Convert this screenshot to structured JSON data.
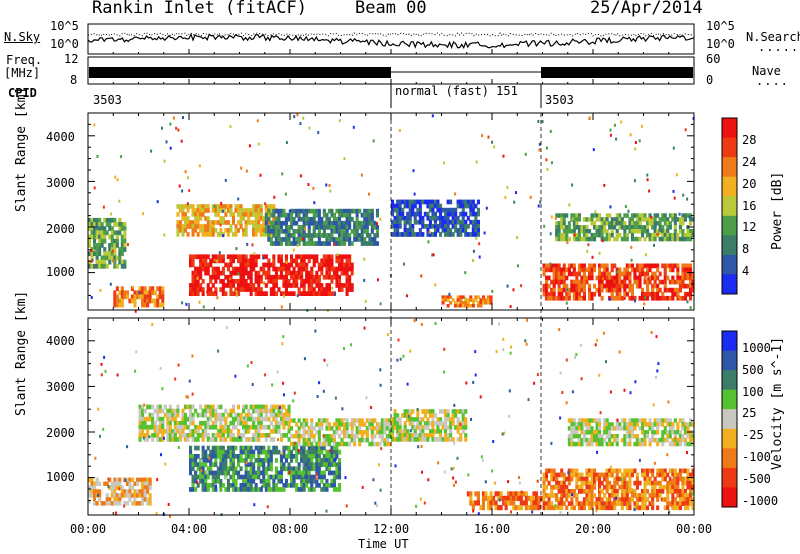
{
  "header": {
    "title": "Rankin Inlet (fitACF)",
    "beam": "Beam 00",
    "date": "25/Apr/2014"
  },
  "strip_labels": {
    "nsky": "N.Sky",
    "nsky_tick_top": "10^5",
    "nsky_tick_bottom": "10^0",
    "nsearch": "N.Search",
    "nsearch_tick_top": "10^5",
    "nsearch_tick_bottom": "10^0",
    "freq_line1": "Freq.",
    "freq_line2": "[MHz]",
    "freq_tick_top": "12",
    "freq_tick_bottom": "8",
    "nave": "Nave",
    "nave_tick_top": "60",
    "nave_tick_bottom": "0",
    "cpid": "CPID",
    "cpid_segments": [
      "3503",
      "normal (fast) 151",
      "3503"
    ]
  },
  "xaxis": {
    "label": "Time UT",
    "ticks": [
      "00:00",
      "04:00",
      "08:00",
      "12:00",
      "16:00",
      "20:00",
      "00:00"
    ]
  },
  "chart_data": [
    {
      "type": "heatmap",
      "title": "",
      "xlabel": "",
      "ylabel": "Slant Range [km]",
      "yticks": [
        1000,
        2000,
        3000,
        4000
      ],
      "ylim": [
        180,
        4500
      ],
      "xlim_hours": [
        0,
        24
      ],
      "colorbar_label": "Power [dB]",
      "colorbar_ticks": [
        "4",
        "8",
        "12",
        "16",
        "20",
        "24",
        "28"
      ],
      "colors": [
        "#1b2cf0",
        "#2f57a8",
        "#3c7d6a",
        "#4d9e4a",
        "#b9c93a",
        "#f0b020",
        "#ef7a18",
        "#ee3a14",
        "#ee1111"
      ],
      "regions": [
        {
          "t0": 0.0,
          "t1": 1.5,
          "r0": 1100,
          "r1": 2200,
          "level": 3
        },
        {
          "t0": 1.0,
          "t1": 3.0,
          "r0": 250,
          "r1": 700,
          "level": 6
        },
        {
          "t0": 3.5,
          "t1": 7.5,
          "r0": 1800,
          "r1": 2500,
          "level": 5
        },
        {
          "t0": 4.0,
          "t1": 10.5,
          "r0": 500,
          "r1": 1400,
          "level": 8
        },
        {
          "t0": 7.0,
          "t1": 11.5,
          "r0": 1600,
          "r1": 2400,
          "level": 2
        },
        {
          "t0": 12.0,
          "t1": 15.5,
          "r0": 1800,
          "r1": 2600,
          "level": 1
        },
        {
          "t0": 14.0,
          "t1": 16.0,
          "r0": 250,
          "r1": 500,
          "level": 6
        },
        {
          "t0": 18.0,
          "t1": 24.0,
          "r0": 400,
          "r1": 1200,
          "level": 7
        },
        {
          "t0": 18.5,
          "t1": 24.0,
          "r0": 1700,
          "r1": 2300,
          "level": 3
        }
      ]
    },
    {
      "type": "heatmap",
      "title": "",
      "xlabel": "Time UT",
      "ylabel": "Slant Range [km]",
      "yticks": [
        1000,
        2000,
        3000,
        4000
      ],
      "ylim": [
        180,
        4500
      ],
      "xlim_hours": [
        0,
        24
      ],
      "colorbar_label": "Velocity [m s^-1]",
      "colorbar_ticks": [
        "1000",
        "500",
        "100",
        "25",
        "-25",
        "-100",
        "-500",
        "-1000"
      ],
      "colors": [
        "#1b2cf0",
        "#2f57a8",
        "#3c7d6a",
        "#57c230",
        "#c8c8c0",
        "#f0b020",
        "#ef7a18",
        "#ee3a14",
        "#ee1111"
      ],
      "regions": [
        {
          "t0": 0.0,
          "t1": 2.5,
          "r0": 400,
          "r1": 1000,
          "level": 5
        },
        {
          "t0": 2.0,
          "t1": 8.0,
          "r0": 1800,
          "r1": 2600,
          "level": 4
        },
        {
          "t0": 4.0,
          "t1": 10.0,
          "r0": 700,
          "r1": 1700,
          "level": 2
        },
        {
          "t0": 8.0,
          "t1": 12.0,
          "r0": 1700,
          "r1": 2300,
          "level": 4
        },
        {
          "t0": 12.0,
          "t1": 15.0,
          "r0": 1800,
          "r1": 2500,
          "level": 4
        },
        {
          "t0": 15.0,
          "t1": 18.0,
          "r0": 300,
          "r1": 700,
          "level": 6
        },
        {
          "t0": 18.0,
          "t1": 24.0,
          "r0": 300,
          "r1": 1200,
          "level": 6
        },
        {
          "t0": 19.0,
          "t1": 24.0,
          "r0": 1700,
          "r1": 2300,
          "level": 4
        }
      ]
    }
  ]
}
